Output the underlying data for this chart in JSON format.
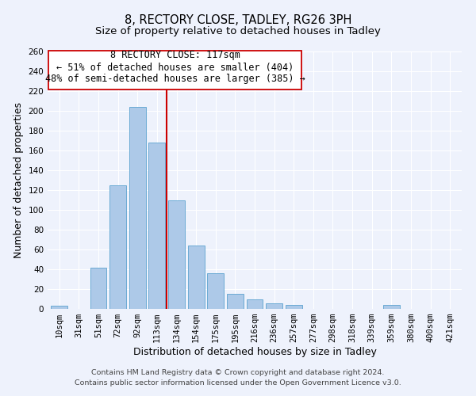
{
  "title": "8, RECTORY CLOSE, TADLEY, RG26 3PH",
  "subtitle": "Size of property relative to detached houses in Tadley",
  "xlabel": "Distribution of detached houses by size in Tadley",
  "ylabel": "Number of detached properties",
  "categories": [
    "10sqm",
    "31sqm",
    "51sqm",
    "72sqm",
    "92sqm",
    "113sqm",
    "134sqm",
    "154sqm",
    "175sqm",
    "195sqm",
    "216sqm",
    "236sqm",
    "257sqm",
    "277sqm",
    "298sqm",
    "318sqm",
    "339sqm",
    "359sqm",
    "380sqm",
    "400sqm",
    "421sqm"
  ],
  "values": [
    3,
    0,
    42,
    125,
    204,
    168,
    110,
    64,
    36,
    15,
    10,
    6,
    4,
    0,
    0,
    0,
    0,
    4,
    0,
    0,
    0
  ],
  "bar_color": "#adc9e8",
  "bar_edge_color": "#6aaad4",
  "vline_color": "#cc0000",
  "annotation_line1": "8 RECTORY CLOSE: 117sqm",
  "annotation_line2": "← 51% of detached houses are smaller (404)",
  "annotation_line3": "48% of semi-detached houses are larger (385) →",
  "annotation_box_color": "#ffffff",
  "annotation_box_edge": "#cc0000",
  "footer_text": "Contains HM Land Registry data © Crown copyright and database right 2024.\nContains public sector information licensed under the Open Government Licence v3.0.",
  "ylim": [
    0,
    260
  ],
  "yticks": [
    0,
    20,
    40,
    60,
    80,
    100,
    120,
    140,
    160,
    180,
    200,
    220,
    240,
    260
  ],
  "bg_color": "#eef2fc",
  "grid_color": "#ffffff",
  "title_fontsize": 10.5,
  "subtitle_fontsize": 9.5,
  "axis_label_fontsize": 9,
  "tick_fontsize": 7.5,
  "annotation_fontsize": 8.5,
  "footer_fontsize": 6.8
}
